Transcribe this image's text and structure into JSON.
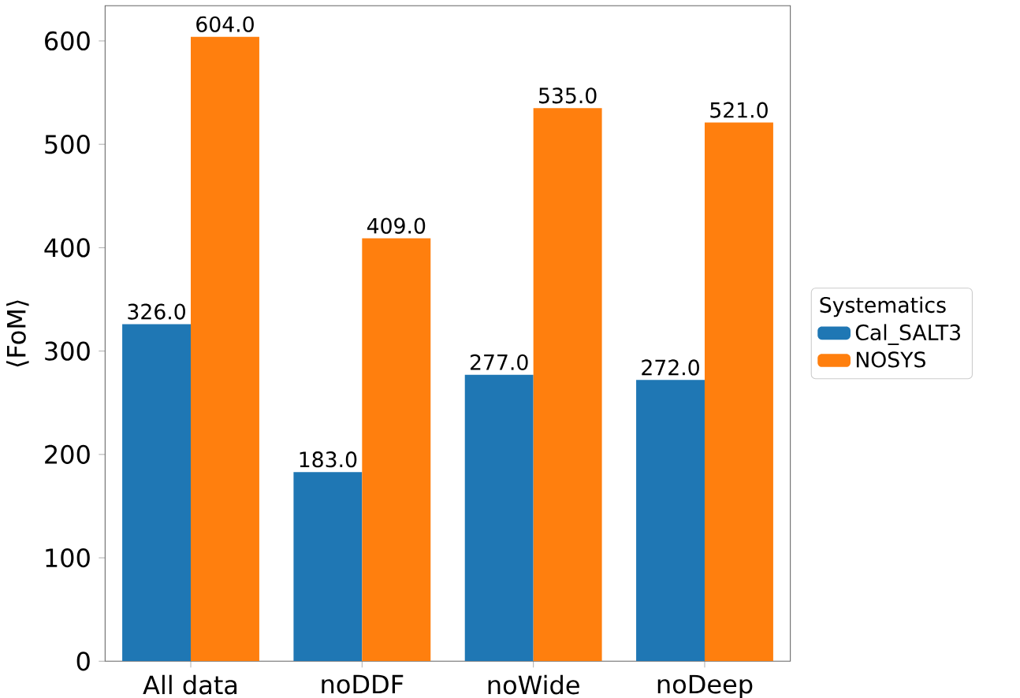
{
  "chart_data": {
    "type": "bar",
    "ylabel": "⟨FoM⟩",
    "legend_title": "Systematics",
    "legend": "right",
    "categories": [
      "All data",
      "noDDF",
      "noWide",
      "noDeep"
    ],
    "series": [
      {
        "name": "Cal_SALT3",
        "color": "#1f77b4",
        "values": [
          326.0,
          183.0,
          277.0,
          272.0
        ],
        "value_labels": [
          "326.0",
          "183.0",
          "277.0",
          "272.0"
        ]
      },
      {
        "name": "NOSYS",
        "color": "#ff7f0e",
        "values": [
          604.0,
          409.0,
          535.0,
          521.0
        ],
        "value_labels": [
          "604.0",
          "409.0",
          "535.0",
          "521.0"
        ]
      }
    ],
    "ylim": [
      0,
      634
    ],
    "yticks": [
      0,
      100,
      200,
      300,
      400,
      500,
      600
    ]
  }
}
